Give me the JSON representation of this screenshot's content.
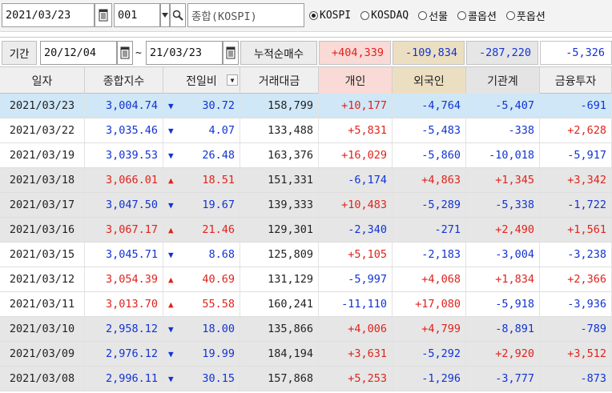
{
  "toolbar": {
    "date": "2021/03/23",
    "code": "001",
    "name": "종합(KOSPI)",
    "markets": [
      {
        "label": "KOSPI",
        "selected": true
      },
      {
        "label": "KOSDAQ",
        "selected": false
      },
      {
        "label": "선물",
        "selected": false
      },
      {
        "label": "콜옵션",
        "selected": false
      },
      {
        "label": "풋옵션",
        "selected": false
      }
    ]
  },
  "period": {
    "label": "기간",
    "from": "20/12/04",
    "tilde": "~",
    "to": "21/03/23",
    "cumulative_label": "누적순매수",
    "totals": [
      "+404,339",
      "-109,834",
      "-287,220",
      "-5,326"
    ]
  },
  "table": {
    "columns": [
      "일자",
      "종합지수",
      "전일비",
      "거래대금",
      "개인",
      "외국인",
      "기관계",
      "금융투자"
    ],
    "rows": [
      {
        "date": "2021/03/23",
        "index": "3,004.74",
        "dir": "down",
        "change": "30.72",
        "amount": "158,799",
        "individual": "+10,177",
        "foreign": "-4,764",
        "institution": "-5,407",
        "finance": "-691"
      },
      {
        "date": "2021/03/22",
        "index": "3,035.46",
        "dir": "down",
        "change": "4.07",
        "amount": "133,488",
        "individual": "+5,831",
        "foreign": "-5,483",
        "institution": "-338",
        "finance": "+2,628"
      },
      {
        "date": "2021/03/19",
        "index": "3,039.53",
        "dir": "down",
        "change": "26.48",
        "amount": "163,376",
        "individual": "+16,029",
        "foreign": "-5,860",
        "institution": "-10,018",
        "finance": "-5,917"
      },
      {
        "date": "2021/03/18",
        "index": "3,066.01",
        "dir": "up",
        "change": "18.51",
        "amount": "151,331",
        "individual": "-6,174",
        "foreign": "+4,863",
        "institution": "+1,345",
        "finance": "+3,342"
      },
      {
        "date": "2021/03/17",
        "index": "3,047.50",
        "dir": "down",
        "change": "19.67",
        "amount": "139,333",
        "individual": "+10,483",
        "foreign": "-5,289",
        "institution": "-5,338",
        "finance": "-1,722"
      },
      {
        "date": "2021/03/16",
        "index": "3,067.17",
        "dir": "up",
        "change": "21.46",
        "amount": "129,301",
        "individual": "-2,340",
        "foreign": "-271",
        "institution": "+2,490",
        "finance": "+1,561"
      },
      {
        "date": "2021/03/15",
        "index": "3,045.71",
        "dir": "down",
        "change": "8.68",
        "amount": "125,809",
        "individual": "+5,105",
        "foreign": "-2,183",
        "institution": "-3,004",
        "finance": "-3,238"
      },
      {
        "date": "2021/03/12",
        "index": "3,054.39",
        "dir": "up",
        "change": "40.69",
        "amount": "131,129",
        "individual": "-5,997",
        "foreign": "+4,068",
        "institution": "+1,834",
        "finance": "+2,366"
      },
      {
        "date": "2021/03/11",
        "index": "3,013.70",
        "dir": "up",
        "change": "55.58",
        "amount": "160,241",
        "individual": "-11,110",
        "foreign": "+17,080",
        "institution": "-5,918",
        "finance": "-3,936"
      },
      {
        "date": "2021/03/10",
        "index": "2,958.12",
        "dir": "down",
        "change": "18.00",
        "amount": "135,866",
        "individual": "+4,006",
        "foreign": "+4,799",
        "institution": "-8,891",
        "finance": "-789"
      },
      {
        "date": "2021/03/09",
        "index": "2,976.12",
        "dir": "down",
        "change": "19.99",
        "amount": "184,194",
        "individual": "+3,631",
        "foreign": "-5,292",
        "institution": "+2,920",
        "finance": "+3,512"
      },
      {
        "date": "2021/03/08",
        "index": "2,996.11",
        "dir": "down",
        "change": "30.15",
        "amount": "157,868",
        "individual": "+5,253",
        "foreign": "-1,296",
        "institution": "-3,777",
        "finance": "-873"
      }
    ]
  },
  "colors": {
    "up": "#e0221b",
    "down": "#1133d4",
    "selected_row": "#cfe7f6",
    "gray_row": "#e6e6e6",
    "individual_header": "#f9dad6",
    "foreign_header": "#ecdfc1"
  },
  "icons": {
    "calendar": "calendar-icon",
    "search": "search-icon",
    "up": "▲",
    "down": "▼",
    "sort": "sort-dropdown-icon"
  }
}
